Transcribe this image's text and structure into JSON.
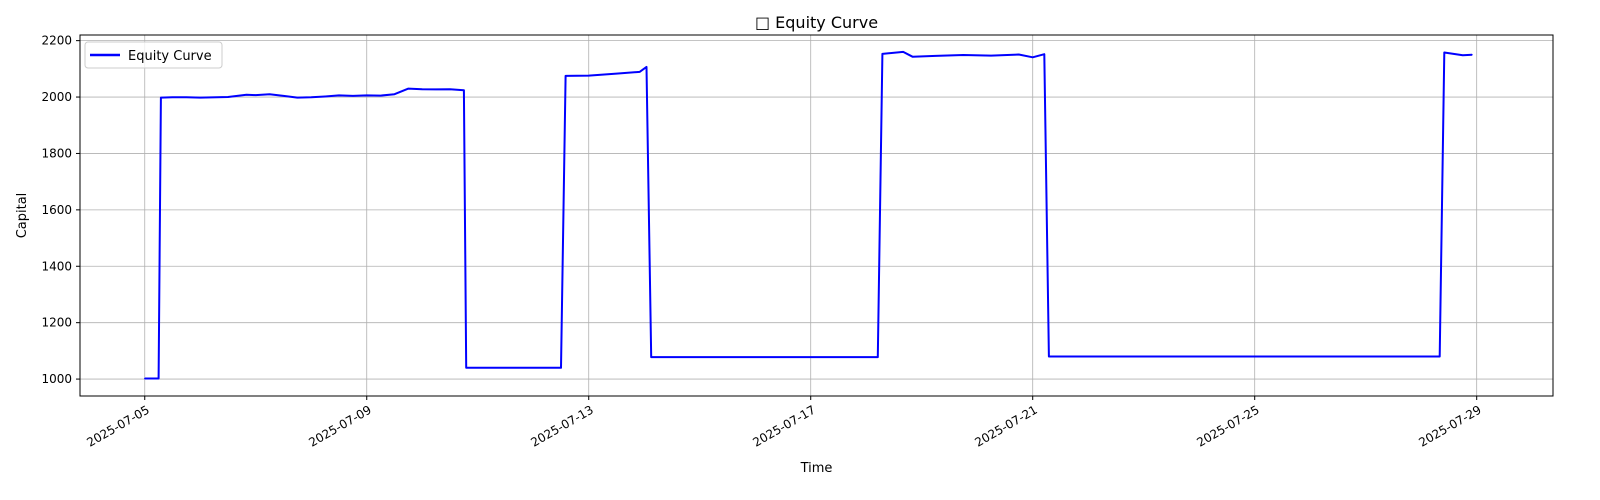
{
  "chart_data": {
    "type": "line",
    "title": "□ Equity Curve",
    "xlabel": "Time",
    "ylabel": "Capital",
    "grid": true,
    "legend_position": "top-left",
    "xlim": [
      "2025-07-03T20:00",
      "2025-07-30T09:00"
    ],
    "ylim": [
      940,
      2220
    ],
    "x_ticks": [
      "2025-07-05",
      "2025-07-09",
      "2025-07-13",
      "2025-07-17",
      "2025-07-21",
      "2025-07-25",
      "2025-07-29"
    ],
    "y_ticks": [
      1000,
      1200,
      1400,
      1600,
      1800,
      2000,
      2200
    ],
    "series": [
      {
        "name": "Equity Curve",
        "color": "#0000ff",
        "x": [
          "2025-07-05T00:00",
          "2025-07-05T06:00",
          "2025-07-05T07:00",
          "2025-07-05T12:00",
          "2025-07-05T18:00",
          "2025-07-06T00:00",
          "2025-07-06T12:00",
          "2025-07-06T20:00",
          "2025-07-07T00:00",
          "2025-07-07T06:00",
          "2025-07-07T12:00",
          "2025-07-07T18:00",
          "2025-07-08T00:00",
          "2025-07-08T06:00",
          "2025-07-08T12:00",
          "2025-07-08T18:00",
          "2025-07-09T00:00",
          "2025-07-09T06:00",
          "2025-07-09T12:00",
          "2025-07-09T18:00",
          "2025-07-10T00:00",
          "2025-07-10T06:00",
          "2025-07-10T12:00",
          "2025-07-10T18:00",
          "2025-07-10T19:00",
          "2025-07-12T12:00",
          "2025-07-12T14:00",
          "2025-07-13T00:00",
          "2025-07-13T12:00",
          "2025-07-13T22:00",
          "2025-07-14T01:00",
          "2025-07-14T03:00",
          "2025-07-18T05:00",
          "2025-07-18T07:00",
          "2025-07-18T16:00",
          "2025-07-18T20:00",
          "2025-07-19T06:00",
          "2025-07-19T18:00",
          "2025-07-20T06:00",
          "2025-07-20T18:00",
          "2025-07-21T00:00",
          "2025-07-21T05:00",
          "2025-07-21T07:00",
          "2025-07-28T08:00",
          "2025-07-28T10:00",
          "2025-07-28T18:00",
          "2025-07-28T22:00"
        ],
        "values": [
          1002,
          1002,
          1998,
          1999,
          1999,
          1998,
          2000,
          2008,
          2007,
          2010,
          2004,
          1998,
          1999,
          2002,
          2006,
          2004,
          2006,
          2005,
          2010,
          2030,
          2028,
          2027,
          2028,
          2024,
          1040,
          1040,
          2075,
          2076,
          2083,
          2089,
          2107,
          1078,
          1078,
          2153,
          2160,
          2143,
          2146,
          2149,
          2147,
          2151,
          2141,
          2152,
          1080,
          1080,
          2158,
          2148,
          2150
        ]
      }
    ]
  }
}
